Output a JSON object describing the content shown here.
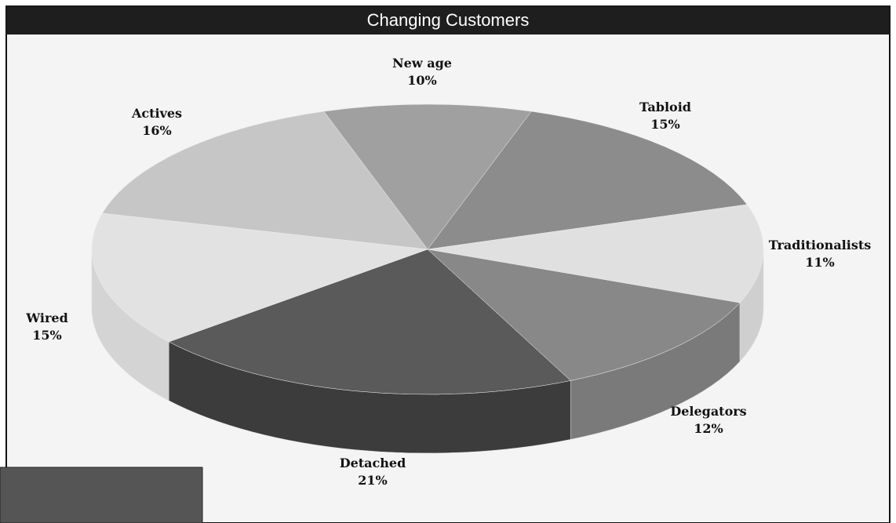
{
  "chart_data": {
    "type": "pie3d",
    "title": "Changing Customers",
    "categories": [
      "New age",
      "Tabloid",
      "Traditionalists",
      "Delegators",
      "Detached",
      "Wired",
      "Actives"
    ],
    "values": [
      10,
      15,
      11,
      12,
      21,
      15,
      16
    ],
    "value_labels": [
      "10%",
      "15%",
      "11%",
      "12%",
      "21%",
      "15%",
      "16%"
    ],
    "colors": [
      "#a0a0a0",
      "#8c8c8c",
      "#e0e0e0",
      "#888888",
      "#5a5a5a",
      "#e2e2e2",
      "#c6c6c6"
    ],
    "side_colors": [
      "#8a8a8a",
      "#767676",
      "#cfcfcf",
      "#7a7a7a",
      "#3c3c3c",
      "#d4d4d4",
      "#b4b4b4"
    ]
  }
}
